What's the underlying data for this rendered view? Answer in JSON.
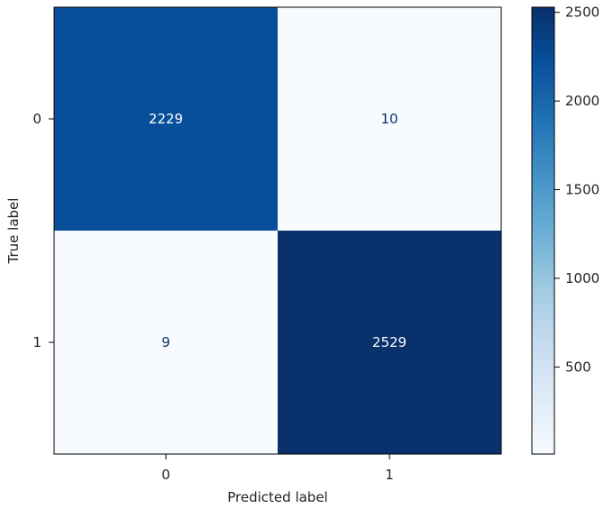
{
  "chart_data": {
    "type": "heatmap",
    "title": "",
    "xlabel": "Predicted label",
    "ylabel": "True label",
    "x_categories": [
      "0",
      "1"
    ],
    "y_categories": [
      "0",
      "1"
    ],
    "matrix": [
      [
        2229,
        10
      ],
      [
        9,
        2529
      ]
    ],
    "colormap": "Blues",
    "colorbar": {
      "range": [
        9,
        2529
      ],
      "ticks": [
        500,
        1000,
        1500,
        2000,
        2500
      ],
      "tick_labels": [
        "500",
        "1000",
        "1500",
        "2000",
        "2500"
      ]
    },
    "text_colors": {
      "dark_cell": "#ffffff",
      "light_cell": "#08306b"
    }
  }
}
